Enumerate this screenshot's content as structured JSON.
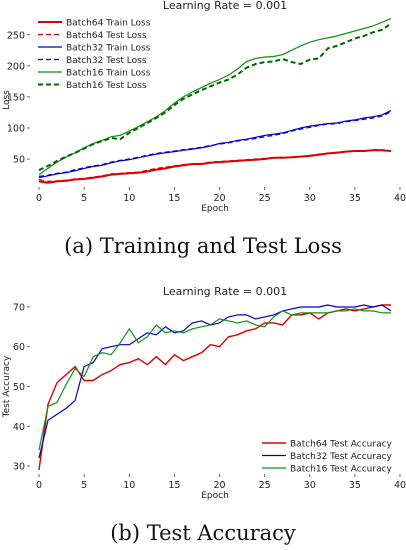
{
  "chart_data": [
    {
      "type": "line",
      "title": "Learning Rate = 0.001",
      "xlabel": "Epoch",
      "ylabel": "Loss",
      "xlim": [
        -1,
        40
      ],
      "ylim": [
        5,
        285
      ],
      "xticks": [
        0,
        5,
        10,
        15,
        20,
        25,
        30,
        35,
        40
      ],
      "yticks": [
        50,
        100,
        150,
        200,
        250
      ],
      "grid": false,
      "legend_position": "top-left",
      "x": [
        0,
        1,
        2,
        3,
        4,
        5,
        6,
        7,
        8,
        9,
        10,
        11,
        12,
        13,
        14,
        15,
        16,
        17,
        18,
        19,
        20,
        21,
        22,
        23,
        24,
        25,
        26,
        27,
        28,
        29,
        30,
        31,
        32,
        33,
        34,
        35,
        36,
        37,
        38,
        39
      ],
      "series": [
        {
          "name": "Batch64 Train Loss",
          "color": "#dd0000",
          "dash": "solid",
          "width": 2,
          "values": [
            14,
            12,
            14,
            15,
            17,
            18,
            20,
            22,
            25,
            26,
            27,
            28,
            30,
            33,
            35,
            38,
            40,
            42,
            42,
            44,
            45,
            46,
            47,
            48,
            49,
            50,
            52,
            52,
            53,
            54,
            55,
            57,
            59,
            60,
            62,
            63,
            63,
            64,
            64,
            63
          ]
        },
        {
          "name": "Batch64 Test Loss",
          "color": "#dd0000",
          "dash": "dashed",
          "width": 1.2,
          "values": [
            17,
            14,
            15,
            16,
            18,
            19,
            21,
            23,
            26,
            27,
            28,
            29,
            32,
            35,
            37,
            39,
            41,
            42,
            43,
            45,
            46,
            47,
            48,
            49,
            50,
            51,
            52,
            53,
            53,
            54,
            56,
            58,
            59,
            61,
            62,
            63,
            63,
            65,
            65,
            63
          ]
        },
        {
          "name": "Batch32 Train Loss",
          "color": "#0000cc",
          "dash": "solid",
          "width": 1.2,
          "values": [
            20,
            23,
            26,
            28,
            31,
            35,
            38,
            40,
            44,
            47,
            49,
            52,
            55,
            58,
            60,
            62,
            64,
            66,
            68,
            71,
            75,
            77,
            80,
            82,
            85,
            88,
            90,
            92,
            96,
            100,
            103,
            105,
            107,
            108,
            111,
            113,
            116,
            118,
            121,
            128
          ]
        },
        {
          "name": "Batch32 Test Loss",
          "color": "#0000cc",
          "dash": "dashed",
          "width": 1.2,
          "values": [
            22,
            24,
            27,
            29,
            33,
            36,
            39,
            41,
            45,
            48,
            50,
            53,
            56,
            59,
            61,
            63,
            65,
            67,
            69,
            72,
            74,
            76,
            79,
            81,
            83,
            86,
            88,
            91,
            95,
            98,
            101,
            104,
            106,
            107,
            110,
            112,
            114,
            116,
            119,
            126
          ]
        },
        {
          "name": "Batch16 Train Loss",
          "color": "#109010",
          "dash": "solid",
          "width": 1.2,
          "values": [
            25,
            35,
            45,
            53,
            60,
            68,
            75,
            80,
            86,
            88,
            95,
            102,
            110,
            118,
            128,
            140,
            150,
            158,
            165,
            172,
            178,
            185,
            195,
            207,
            212,
            214,
            215,
            218,
            225,
            232,
            238,
            242,
            245,
            248,
            252,
            256,
            260,
            264,
            270,
            276
          ]
        },
        {
          "name": "Batch16 Test Loss",
          "color": "#006600",
          "dash": "dashed",
          "width": 2,
          "values": [
            32,
            39,
            47,
            54,
            60,
            67,
            74,
            79,
            84,
            82,
            92,
            100,
            108,
            116,
            125,
            137,
            147,
            154,
            161,
            167,
            173,
            178,
            186,
            197,
            203,
            206,
            207,
            211,
            206,
            203,
            210,
            212,
            228,
            232,
            238,
            244,
            248,
            254,
            258,
            268
          ]
        }
      ]
    },
    {
      "type": "line",
      "title": "Learning Rate = 0.001",
      "xlabel": "Epoch",
      "ylabel": "Test Accuracy",
      "xlim": [
        -1,
        40
      ],
      "ylim": [
        28,
        72
      ],
      "xticks": [
        0,
        5,
        10,
        15,
        20,
        25,
        30,
        35,
        40
      ],
      "yticks": [
        30,
        40,
        50,
        60,
        70
      ],
      "grid": false,
      "legend_position": "bottom-right",
      "x": [
        0,
        1,
        2,
        3,
        4,
        5,
        6,
        7,
        8,
        9,
        10,
        11,
        12,
        13,
        14,
        15,
        16,
        17,
        18,
        19,
        20,
        21,
        22,
        23,
        24,
        25,
        26,
        27,
        28,
        29,
        30,
        31,
        32,
        33,
        34,
        35,
        36,
        37,
        38,
        39
      ],
      "series": [
        {
          "name": "Batch64 Test Accuracy",
          "color": "#dd0000",
          "width": 1.4,
          "values": [
            29,
            45.5,
            51,
            53,
            55,
            51.5,
            51.5,
            53,
            54,
            55.5,
            56,
            57,
            55.5,
            57.5,
            55.5,
            58,
            56.5,
            57.5,
            58.5,
            60.5,
            60,
            62.5,
            63,
            64,
            64.5,
            66,
            66,
            65.5,
            68,
            68,
            68.5,
            67,
            68.5,
            69,
            69.5,
            69,
            69.5,
            70,
            70.5,
            70.5
          ]
        },
        {
          "name": "Batch32 Test Accuracy",
          "color": "#0000cc",
          "width": 1.2,
          "values": [
            32,
            41.5,
            43,
            44.5,
            46.5,
            55,
            56,
            59.5,
            60,
            60.5,
            60.5,
            62,
            63.5,
            63,
            65,
            63.5,
            64,
            66,
            66.5,
            65.5,
            66,
            67.5,
            68,
            68,
            67,
            67.5,
            68,
            69,
            69.5,
            70,
            70,
            70,
            70.5,
            70,
            70,
            70,
            70.5,
            70,
            70.5,
            69
          ]
        },
        {
          "name": "Batch16 Test Accuracy",
          "color": "#109010",
          "width": 1.2,
          "values": [
            34,
            45,
            46,
            50.5,
            54.5,
            52.5,
            57.5,
            58.5,
            58,
            61,
            64.5,
            61,
            62.5,
            65.5,
            63.5,
            64,
            63.5,
            64.5,
            65,
            65.5,
            67,
            66.5,
            66,
            66.5,
            65.5,
            65,
            67.5,
            69,
            68,
            68.5,
            68.5,
            68.5,
            68.5,
            69,
            69,
            69.5,
            69,
            69,
            68.5,
            68.5
          ]
        }
      ]
    }
  ],
  "captions": {
    "top": "(a) Training and Test Loss",
    "bottom": "(b) Test Accuracy"
  }
}
